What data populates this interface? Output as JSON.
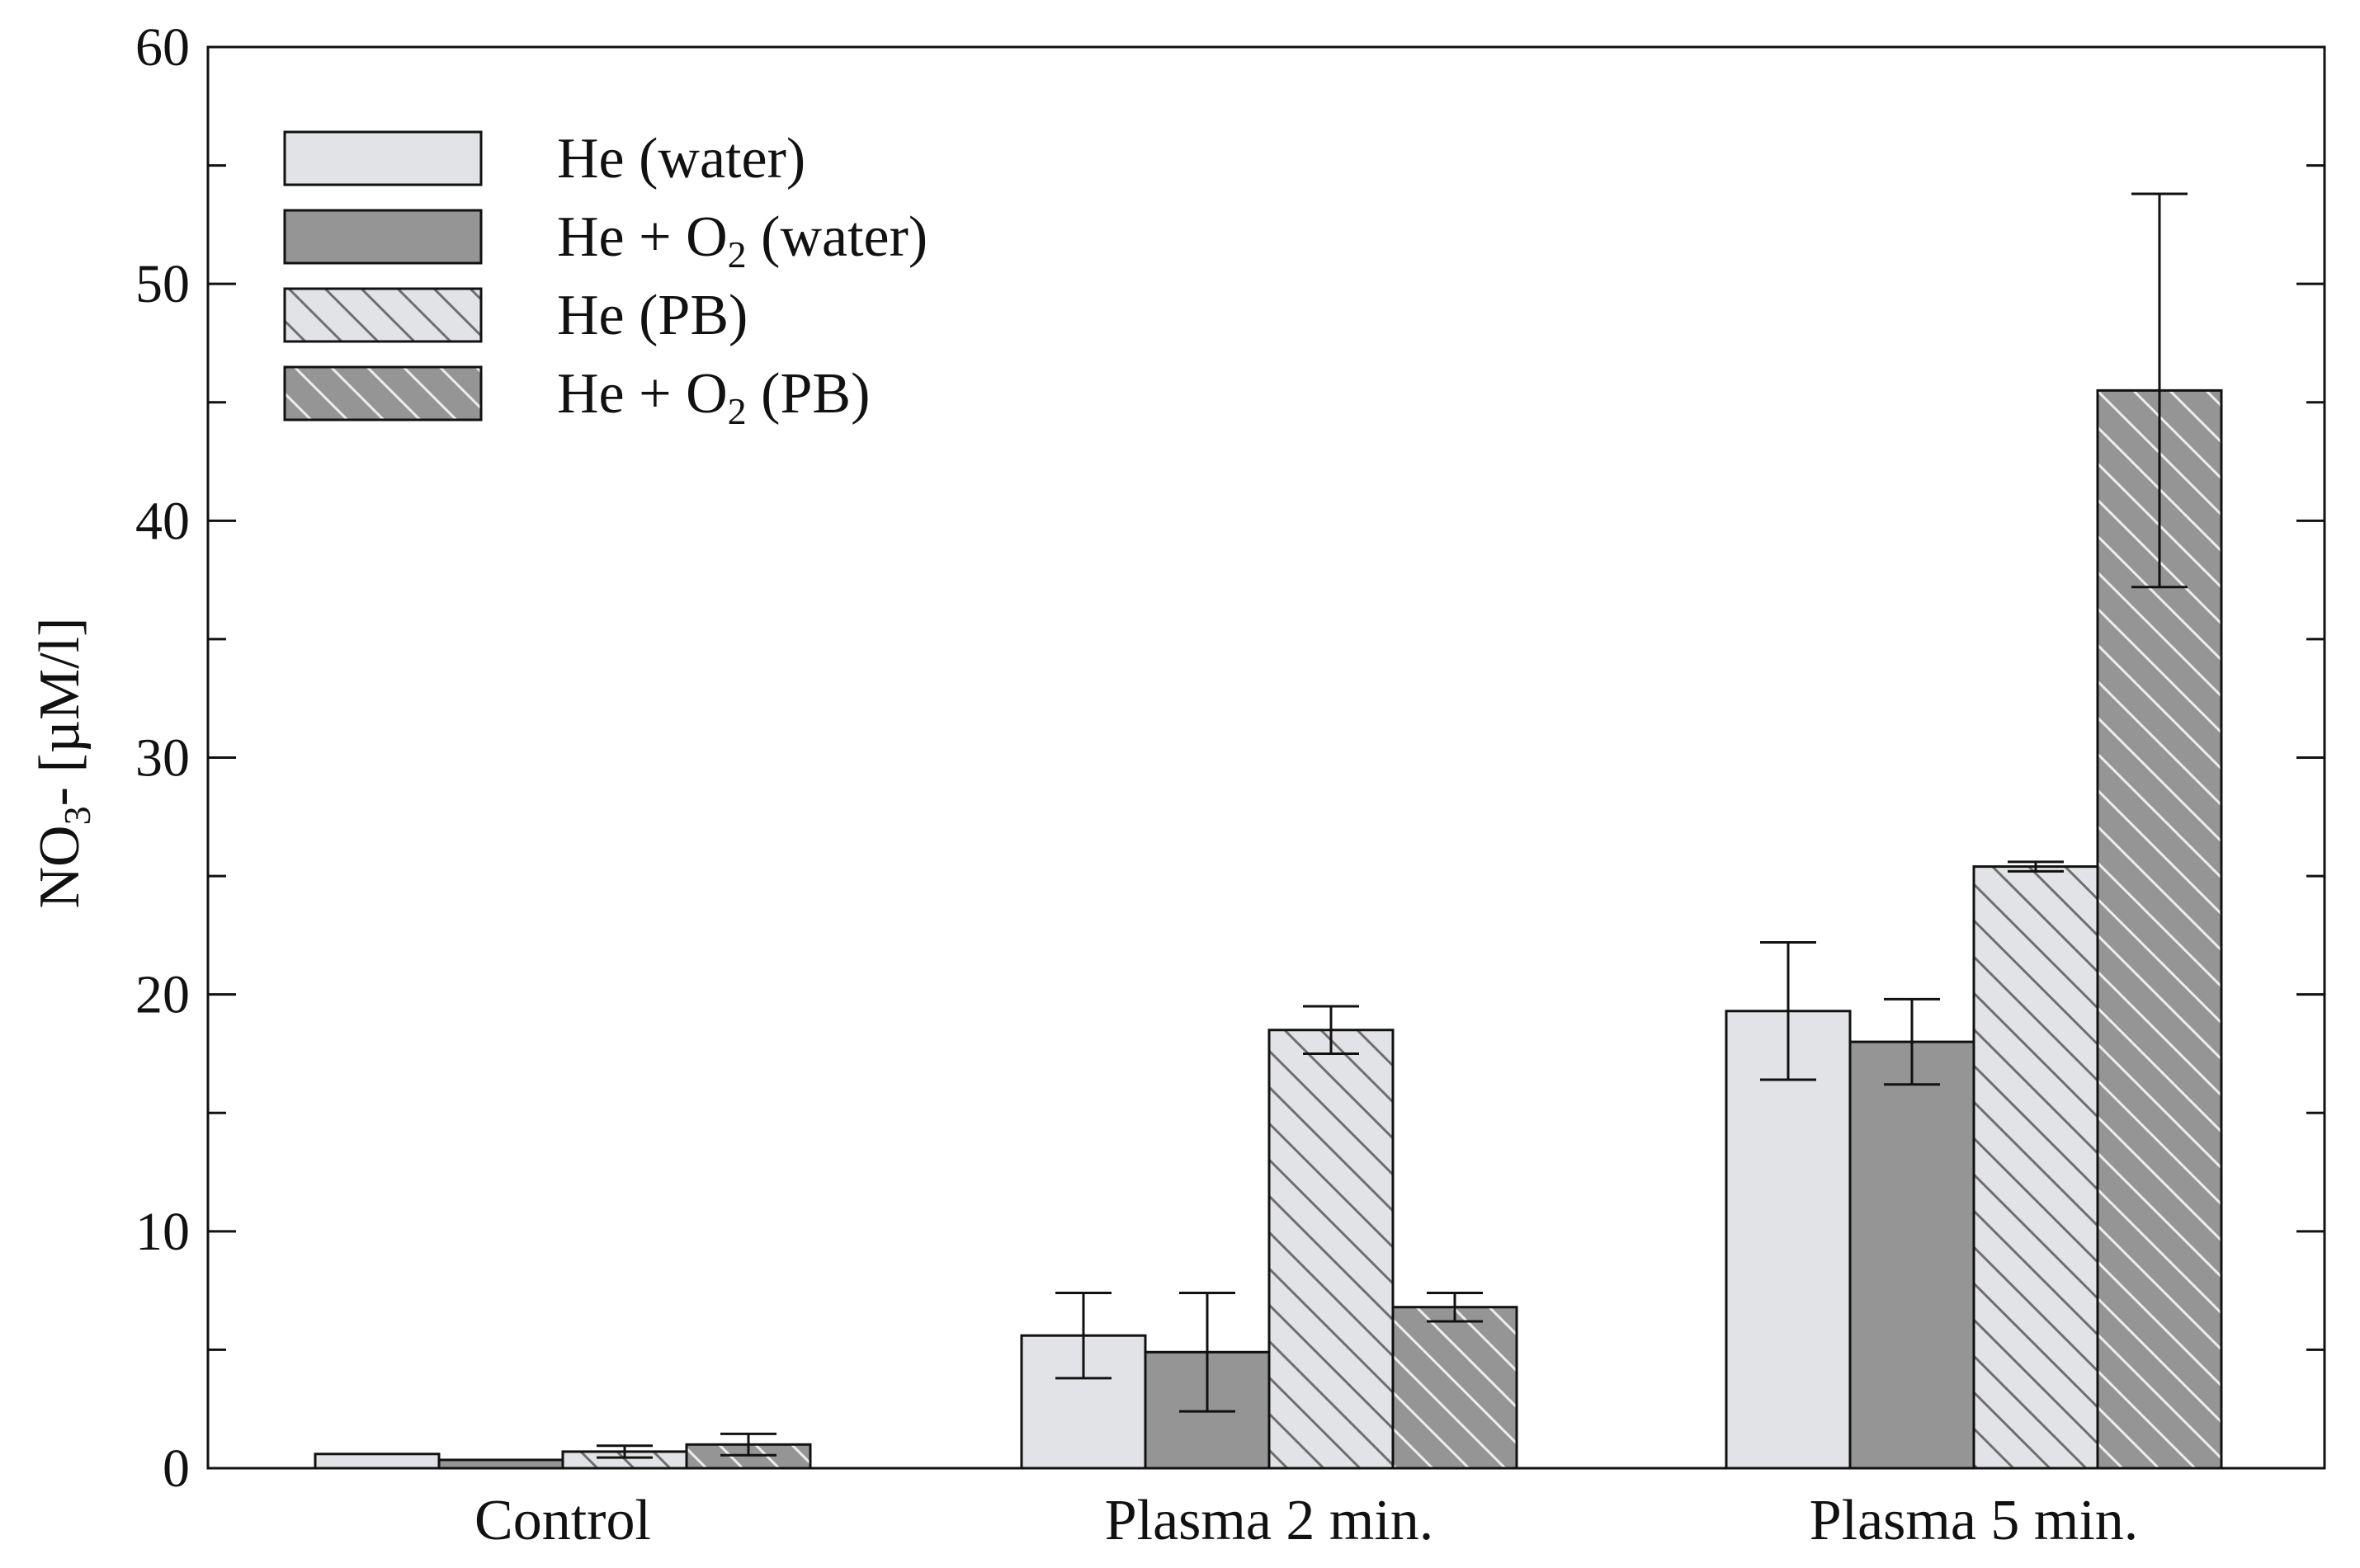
{
  "chart_data": {
    "type": "bar",
    "title": "",
    "xlabel": "",
    "ylabel": {
      "prefix": "NO",
      "sub": "3",
      "suffix": "- [µM/l]"
    },
    "ylim": [
      0,
      60
    ],
    "yticks": [
      0,
      10,
      20,
      30,
      40,
      50,
      60
    ],
    "grid": false,
    "legend_position": "top-left",
    "categories": [
      "Control",
      "Plasma 2 min.",
      "Plasma 5 min."
    ],
    "series": [
      {
        "name": "He (water)",
        "label_main": "He (water)",
        "label_sub": "",
        "label_tail": "",
        "fill": "#e2e3e6",
        "hatch": false,
        "values": [
          0.6,
          5.6,
          19.3
        ],
        "errors": [
          0.0,
          1.8,
          2.9
        ]
      },
      {
        "name": "He + O2 (water)",
        "label_main": "He + O",
        "label_sub": "2",
        "label_tail": " (water)",
        "fill": "#959595",
        "hatch": false,
        "values": [
          0.35,
          4.9,
          18.0
        ],
        "errors": [
          0.0,
          2.5,
          1.8
        ]
      },
      {
        "name": "He (PB)",
        "label_main": "He (PB)",
        "label_sub": "",
        "label_tail": "",
        "fill": "#e2e3e6",
        "hatch": true,
        "values": [
          0.7,
          18.5,
          25.4
        ],
        "errors": [
          0.25,
          1.0,
          0.2
        ]
      },
      {
        "name": "He + O2 (PB)",
        "label_main": "He + O",
        "label_sub": "2",
        "label_tail": " (PB)",
        "fill": "#959595",
        "hatch": true,
        "values": [
          1.0,
          6.8,
          45.5
        ],
        "errors": [
          0.45,
          0.6,
          8.3
        ]
      }
    ]
  }
}
